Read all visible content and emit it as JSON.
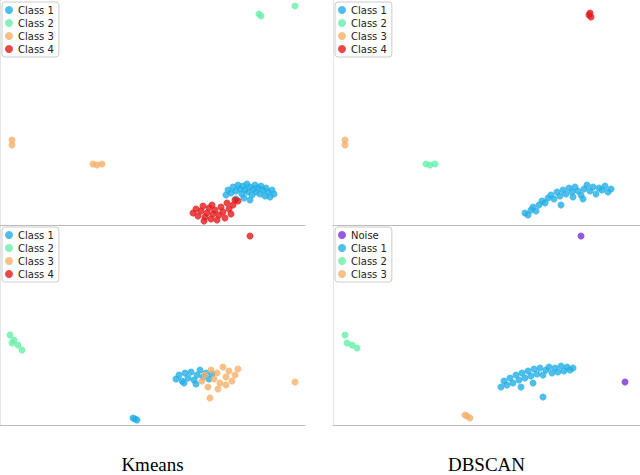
{
  "chart_data": [
    {
      "type": "scatter",
      "tick_labels": false,
      "xlim": [
        0,
        305
      ],
      "ylim": [
        0,
        225
      ],
      "legend": "upper left",
      "series": [
        {
          "name": "Class 1",
          "color": "#22aee6",
          "x": [
            226,
            228,
            231,
            233,
            236,
            238,
            240,
            242,
            243,
            245,
            247,
            248,
            250,
            252,
            253,
            255,
            256,
            258,
            260,
            261,
            263,
            265,
            266,
            268,
            270,
            272,
            274,
            250,
            244,
            236
          ],
          "y": [
            30,
            35,
            32,
            38,
            34,
            40,
            36,
            31,
            39,
            35,
            41,
            33,
            38,
            30,
            36,
            40,
            33,
            37,
            31,
            39,
            35,
            29,
            37,
            33,
            28,
            35,
            31,
            25,
            27,
            26
          ]
        },
        {
          "name": "Class 2",
          "color": "#66f0a8",
          "x": [
            259,
            261,
            295
          ],
          "y": [
            211,
            209,
            219
          ]
        },
        {
          "name": "Class 3",
          "color": "#f5b06a",
          "x": [
            12,
            12,
            93,
            97,
            102
          ],
          "y": [
            85,
            80,
            61,
            60,
            61
          ]
        },
        {
          "name": "Class 4",
          "color": "#e31a1c",
          "x": [
            193,
            196,
            198,
            201,
            203,
            205,
            207,
            209,
            211,
            213,
            215,
            217,
            219,
            221,
            223,
            225,
            227,
            229,
            231,
            233,
            235,
            238,
            204,
            212
          ],
          "y": [
            12,
            16,
            9,
            14,
            19,
            8,
            12,
            17,
            6,
            11,
            15,
            5,
            10,
            18,
            13,
            7,
            22,
            16,
            11,
            20,
            25,
            24,
            4,
            20
          ]
        }
      ]
    },
    {
      "type": "scatter",
      "tick_labels": false,
      "xlim": [
        0,
        307
      ],
      "ylim": [
        0,
        225
      ],
      "legend": "upper left",
      "series": [
        {
          "name": "Class 1",
          "color": "#22aee6",
          "x": [
            192,
            195,
            198,
            200,
            203,
            206,
            209,
            212,
            215,
            218,
            221,
            224,
            227,
            230,
            233,
            236,
            239,
            242,
            245,
            248,
            251,
            254,
            257,
            260,
            263,
            266,
            269,
            272,
            275,
            278,
            250,
            240,
            228
          ],
          "y": [
            12,
            10,
            15,
            18,
            14,
            20,
            24,
            22,
            27,
            30,
            26,
            33,
            29,
            35,
            31,
            37,
            33,
            38,
            34,
            30,
            36,
            40,
            34,
            38,
            31,
            37,
            35,
            39,
            33,
            36,
            26,
            28,
            20
          ]
        },
        {
          "name": "Class 2",
          "color": "#66f0a8",
          "x": [
            93,
            97,
            102
          ],
          "y": [
            61,
            60,
            61
          ]
        },
        {
          "name": "Class 3",
          "color": "#f5b06a",
          "x": [
            12,
            12
          ],
          "y": [
            85,
            80
          ]
        },
        {
          "name": "Class 4",
          "color": "#e31a1c",
          "x": [
            257,
            258,
            256
          ],
          "y": [
            212,
            208,
            210
          ]
        }
      ]
    },
    {
      "type": "scatter",
      "tick_labels": false,
      "xlim": [
        0,
        305
      ],
      "ylim": [
        0,
        200
      ],
      "legend": "upper left",
      "xlabel": "Kmeans",
      "series": [
        {
          "name": "Class 1",
          "color": "#22aee6",
          "x": [
            176,
            179,
            182,
            185,
            188,
            191,
            194,
            197,
            200,
            203,
            206,
            209,
            212,
            184,
            196,
            133,
            137,
            135
          ],
          "y": [
            46,
            50,
            44,
            52,
            47,
            53,
            45,
            50,
            55,
            48,
            52,
            46,
            51,
            42,
            41,
            7,
            5,
            6
          ]
        },
        {
          "name": "Class 2",
          "color": "#66f0a8",
          "x": [
            10,
            12,
            18,
            22,
            14
          ],
          "y": [
            90,
            82,
            80,
            75,
            85
          ]
        },
        {
          "name": "Class 3",
          "color": "#f5b06a",
          "x": [
            202,
            205,
            208,
            211,
            214,
            217,
            220,
            223,
            226,
            229,
            232,
            235,
            238,
            218,
            226,
            295,
            210
          ],
          "y": [
            44,
            50,
            38,
            55,
            46,
            52,
            42,
            58,
            48,
            54,
            44,
            50,
            56,
            36,
            40,
            43,
            27
          ]
        },
        {
          "name": "Class 4",
          "color": "#e31a1c",
          "x": [
            250
          ],
          "y": [
            189
          ]
        }
      ]
    },
    {
      "type": "scatter",
      "tick_labels": false,
      "xlim": [
        0,
        307
      ],
      "ylim": [
        0,
        200
      ],
      "legend": "upper left",
      "xlabel": "DBSCAN",
      "series": [
        {
          "name": "Noise",
          "color": "#7b2fd6",
          "x": [
            248,
            292
          ],
          "y": [
            189,
            43
          ]
        },
        {
          "name": "Class 1",
          "color": "#22aee6",
          "x": [
            168,
            171,
            174,
            177,
            180,
            183,
            186,
            189,
            192,
            195,
            198,
            201,
            204,
            207,
            210,
            213,
            216,
            219,
            222,
            225,
            228,
            231,
            234,
            237,
            240,
            188,
            200,
            210
          ],
          "y": [
            38,
            44,
            40,
            47,
            42,
            50,
            45,
            52,
            47,
            54,
            49,
            56,
            51,
            57,
            50,
            55,
            58,
            52,
            57,
            53,
            59,
            54,
            58,
            55,
            57,
            38,
            42,
            28
          ]
        },
        {
          "name": "Class 2",
          "color": "#66f0a8",
          "x": [
            12,
            14,
            19,
            24
          ],
          "y": [
            90,
            82,
            80,
            77
          ]
        },
        {
          "name": "Class 3",
          "color": "#f5b06a",
          "x": [
            132,
            137,
            134
          ],
          "y": [
            10,
            7,
            9
          ]
        }
      ]
    }
  ]
}
